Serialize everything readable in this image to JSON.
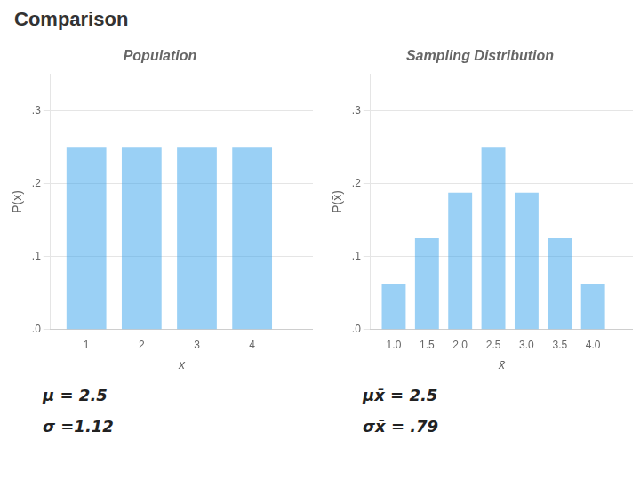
{
  "title": "Comparison",
  "chart_data": [
    {
      "type": "bar",
      "title": "Population",
      "x": [
        1,
        2,
        3,
        4
      ],
      "values": [
        0.25,
        0.25,
        0.25,
        0.25
      ],
      "x_label": "x",
      "y_label": "P(x)",
      "xlim": [
        0.35,
        5.1
      ],
      "xticks": [
        1,
        2,
        3,
        4
      ],
      "ylim": [
        0,
        0.35
      ],
      "yticks": [
        {
          "value": 0.0,
          "label": ".0"
        },
        {
          "value": 0.1,
          "label": ".1"
        },
        {
          "value": 0.2,
          "label": ".2"
        },
        {
          "value": 0.3,
          "label": ".3"
        }
      ],
      "grid": true,
      "annotations": [
        "μ = 2.5",
        "σ =1.12"
      ]
    },
    {
      "type": "bar",
      "title": "Sampling Distribution",
      "x": [
        1.0,
        1.5,
        2.0,
        2.5,
        3.0,
        3.5,
        4.0
      ],
      "values": [
        0.0625,
        0.125,
        0.1875,
        0.25,
        0.1875,
        0.125,
        0.0625
      ],
      "x_label": "x̄",
      "y_label": "P(x̄)",
      "xlim": [
        0.65,
        4.6
      ],
      "xticks": [
        {
          "value": 1.0,
          "label": "1.0"
        },
        1.5,
        {
          "value": 2.0,
          "label": "2.0"
        },
        2.5,
        {
          "value": 3.0,
          "label": "3.0"
        },
        3.5,
        {
          "value": 4.0,
          "label": "4.0"
        }
      ],
      "ylim": [
        0,
        0.35
      ],
      "yticks": [
        {
          "value": 0.0,
          "label": ".0"
        },
        {
          "value": 0.1,
          "label": ".1"
        },
        {
          "value": 0.2,
          "label": ".2"
        },
        {
          "value": 0.3,
          "label": ".3"
        }
      ],
      "grid": true,
      "annotations": [
        "μx̄ = 2.5",
        "σx̄ = .79"
      ]
    }
  ]
}
